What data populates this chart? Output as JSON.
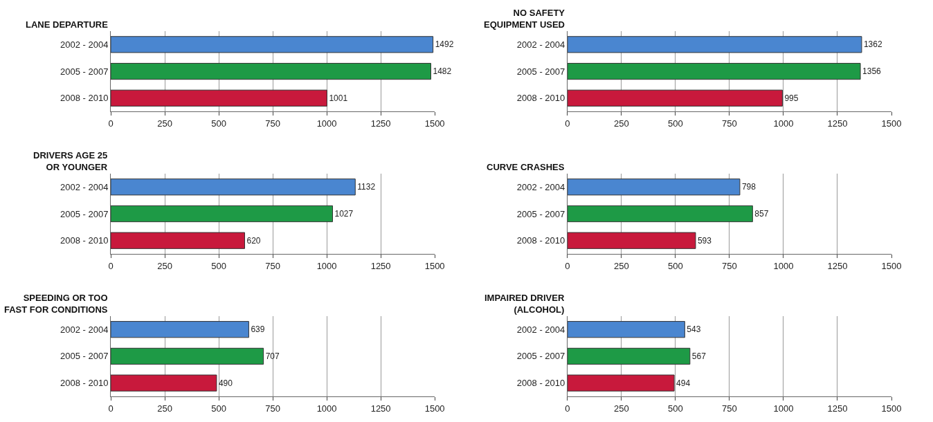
{
  "chart_data": [
    {
      "type": "bar",
      "orientation": "horizontal",
      "title": "LANE DEPARTURE",
      "categories": [
        "2002 - 2004",
        "2005 - 2007",
        "2008 - 2010"
      ],
      "values": [
        1492,
        1482,
        1001
      ],
      "colors": [
        "#4a86d0",
        "#1e9a46",
        "#c8193c"
      ],
      "xlim": [
        0,
        1500
      ],
      "xticks": [
        0,
        250,
        500,
        750,
        1000,
        1250,
        1500
      ],
      "grid": "x",
      "data_labels": true
    },
    {
      "type": "bar",
      "orientation": "horizontal",
      "title": "NO SAFETY\nEQUIPMENT USED",
      "categories": [
        "2002 - 2004",
        "2005 - 2007",
        "2008 - 2010"
      ],
      "values": [
        1362,
        1356,
        995
      ],
      "colors": [
        "#4a86d0",
        "#1e9a46",
        "#c8193c"
      ],
      "xlim": [
        0,
        1500
      ],
      "xticks": [
        0,
        250,
        500,
        750,
        1000,
        1250,
        1500
      ],
      "grid": "x",
      "data_labels": true
    },
    {
      "type": "bar",
      "orientation": "horizontal",
      "title": "DRIVERS AGE 25\nOR YOUNGER",
      "categories": [
        "2002 - 2004",
        "2005 - 2007",
        "2008 - 2010"
      ],
      "values": [
        1132,
        1027,
        620
      ],
      "colors": [
        "#4a86d0",
        "#1e9a46",
        "#c8193c"
      ],
      "xlim": [
        0,
        1500
      ],
      "xticks": [
        0,
        250,
        500,
        750,
        1000,
        1250,
        1500
      ],
      "grid": "x",
      "data_labels": true
    },
    {
      "type": "bar",
      "orientation": "horizontal",
      "title": "CURVE CRASHES",
      "categories": [
        "2002 - 2004",
        "2005 - 2007",
        "2008 - 2010"
      ],
      "values": [
        798,
        857,
        593
      ],
      "colors": [
        "#4a86d0",
        "#1e9a46",
        "#c8193c"
      ],
      "xlim": [
        0,
        1500
      ],
      "xticks": [
        0,
        250,
        500,
        750,
        1000,
        1250,
        1500
      ],
      "grid": "x",
      "data_labels": true
    },
    {
      "type": "bar",
      "orientation": "horizontal",
      "title": "SPEEDING OR TOO\nFAST FOR CONDITIONS",
      "categories": [
        "2002 - 2004",
        "2005 - 2007",
        "2008 - 2010"
      ],
      "values": [
        639,
        707,
        490
      ],
      "colors": [
        "#4a86d0",
        "#1e9a46",
        "#c8193c"
      ],
      "xlim": [
        0,
        1500
      ],
      "xticks": [
        0,
        250,
        500,
        750,
        1000,
        1250,
        1500
      ],
      "grid": "x",
      "data_labels": true
    },
    {
      "type": "bar",
      "orientation": "horizontal",
      "title": "IMPAIRED DRIVER\n(ALCOHOL)",
      "categories": [
        "2002 - 2004",
        "2005 - 2007",
        "2008 - 2010"
      ],
      "values": [
        543,
        567,
        494
      ],
      "colors": [
        "#4a86d0",
        "#1e9a46",
        "#c8193c"
      ],
      "xlim": [
        0,
        1500
      ],
      "xticks": [
        0,
        250,
        500,
        750,
        1000,
        1250,
        1500
      ],
      "grid": "x",
      "data_labels": true
    }
  ]
}
